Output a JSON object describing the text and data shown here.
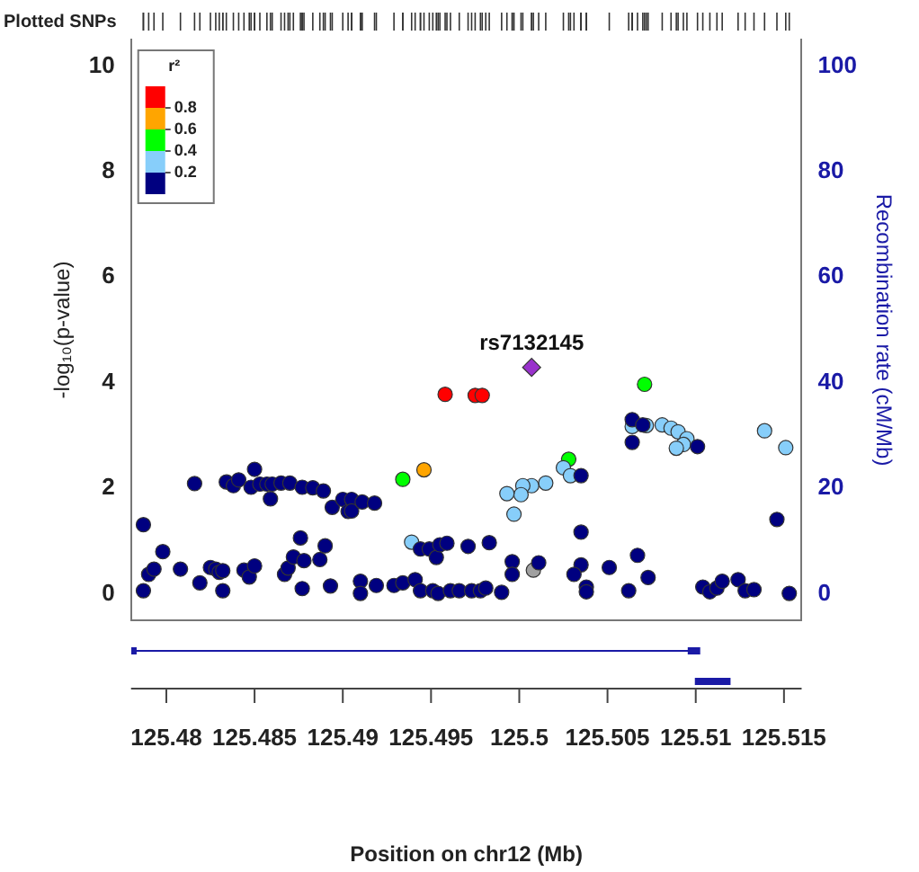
{
  "chart_data": {
    "type": "scatter",
    "xlabel": "Position on chr12 (Mb)",
    "ylabel": "-log₁₀(p-value)",
    "y2label": "Recombination rate (cM/Mb)",
    "legend_title": "r²",
    "xlim": [
      125.478,
      125.516
    ],
    "xticks": [
      125.48,
      125.485,
      125.49,
      125.495,
      125.5,
      125.505,
      125.51,
      125.515
    ],
    "ylim": [
      -0.5,
      10.5
    ],
    "yticks": [
      0,
      2,
      4,
      6,
      8,
      10
    ],
    "y2lim": [
      -5,
      105
    ],
    "y2ticks": [
      0,
      20,
      40,
      60,
      80,
      100
    ],
    "grid": false,
    "legend": "top left",
    "marker": "circle",
    "annotations": [
      "Plotted SNPs",
      {
        "text": "rs7132145",
        "x": 125.5007,
        "y": 4.29
      }
    ],
    "series": [
      {
        "color": "#000080",
        "x": [
          125.4787,
          125.4787,
          125.479,
          125.4793,
          125.4798,
          125.4808,
          125.4816,
          125.4819,
          125.4825,
          125.4828,
          125.483,
          125.4832,
          125.4832,
          125.4834,
          125.4838,
          125.4841,
          125.4844,
          125.4847,
          125.485,
          125.485,
          125.4848,
          125.4853,
          125.4857,
          125.486,
          125.4859,
          125.4865,
          125.487,
          125.4867,
          125.4869,
          125.4872,
          125.4876,
          125.4877,
          125.4878,
          125.4877,
          125.4883,
          125.4889,
          125.4887,
          125.489,
          125.4893,
          125.4894,
          125.49,
          125.4903,
          125.4905,
          125.4905,
          125.4911,
          125.4918,
          125.491,
          125.491,
          125.4919,
          125.4929,
          125.4934,
          125.4941,
          125.4944,
          125.4944,
          125.4949,
          125.4953,
          125.4951,
          125.4955,
          125.4959,
          125.4954,
          125.4961,
          125.4966,
          125.4971,
          125.4973,
          125.4978,
          125.5064,
          125.507,
          125.5064,
          125.5101,
          125.5035,
          125.5146,
          125.5035,
          125.4983,
          125.4996,
          125.5011,
          125.4996,
          125.5035,
          125.5031,
          125.5051,
          125.5067,
          125.5073,
          125.5038,
          125.5038,
          125.5062,
          125.499,
          125.4981,
          125.5104,
          125.5108,
          125.5112,
          125.5115,
          125.5124,
          125.5128,
          125.5133,
          125.5153
        ],
        "values": [
          1.31,
          0.06,
          0.37,
          0.47,
          0.8,
          0.47,
          2.09,
          0.21,
          0.5,
          0.47,
          0.41,
          0.44,
          0.06,
          2.12,
          2.05,
          2.16,
          0.45,
          0.32,
          2.36,
          0.53,
          2.02,
          2.08,
          2.08,
          2.08,
          1.8,
          2.1,
          2.1,
          0.37,
          0.49,
          0.7,
          1.06,
          2.02,
          0.63,
          0.1,
          2.01,
          1.95,
          0.65,
          0.91,
          0.15,
          1.64,
          1.79,
          1.56,
          1.79,
          1.57,
          1.74,
          1.72,
          0.24,
          0.01,
          0.16,
          0.16,
          0.21,
          0.27,
          0.85,
          0.06,
          0.85,
          0.69,
          0.06,
          0.93,
          0.96,
          0.01,
          0.06,
          0.06,
          0.9,
          0.06,
          0.06,
          3.3,
          3.2,
          2.87,
          2.79,
          2.24,
          1.41,
          1.17,
          0.97,
          0.61,
          0.59,
          0.37,
          0.55,
          0.37,
          0.5,
          0.73,
          0.31,
          0.13,
          0.04,
          0.06,
          0.03,
          0.11,
          0.13,
          0.04,
          0.11,
          0.24,
          0.27,
          0.06,
          0.08,
          0.01
        ]
      },
      {
        "name": "0.2",
        "color": "#87cefa",
        "x": [
          125.4939,
          125.5025,
          125.5029,
          125.5015,
          125.5007,
          125.5002,
          125.5001,
          125.4993,
          125.4997,
          125.5064,
          125.5072,
          125.5081,
          125.5086,
          125.509,
          125.5095,
          125.5093,
          125.5089,
          125.5139,
          125.5151
        ],
        "values": [
          0.98,
          2.39,
          2.24,
          2.1,
          2.05,
          2.05,
          1.88,
          1.9,
          1.51,
          3.17,
          3.19,
          3.2,
          3.14,
          3.07,
          2.94,
          2.83,
          2.76,
          3.09,
          2.77
        ]
      },
      {
        "name": "0.4",
        "color": "#00ff00",
        "x": [
          125.4934,
          125.5028,
          125.5071
        ],
        "values": [
          2.17,
          2.55,
          3.97
        ]
      },
      {
        "name": "0.6",
        "color": "#ffa500",
        "x": [
          125.4946
        ],
        "values": [
          2.35
        ]
      },
      {
        "name": "0.8",
        "color": "#ff0000",
        "x": [
          125.4958,
          125.4975,
          125.4979
        ],
        "values": [
          3.78,
          3.76,
          3.76
        ]
      },
      {
        "color": "#9932cc",
        "marker": "diamond",
        "x": [
          125.5007
        ],
        "values": [
          4.29
        ]
      },
      {
        "color": "#a0a0a0",
        "x": [
          125.5008
        ],
        "values": [
          0.45
        ]
      }
    ]
  }
}
